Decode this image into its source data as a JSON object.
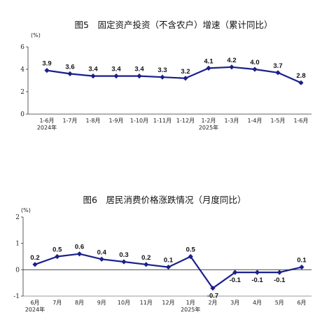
{
  "chart_data": [
    {
      "type": "line",
      "title": "图5　固定资产投资（不含农户）增速（累计同比）",
      "unit": "(%)",
      "ylim": [
        0,
        6
      ],
      "yticks": [
        "0",
        "2",
        "4",
        "6"
      ],
      "categories": [
        "1-6月",
        "1-7月",
        "1-8月",
        "1-9月",
        "1-10月",
        "1-11月",
        "1-12月",
        "1-2月",
        "1-3月",
        "1-4月",
        "1-5月",
        "1-6月"
      ],
      "year_labels": [
        {
          "index": 0,
          "label": "2024年"
        },
        {
          "index": 7,
          "label": "2025年"
        }
      ],
      "values": [
        3.9,
        3.6,
        3.4,
        3.4,
        3.4,
        3.3,
        3.2,
        4.1,
        4.2,
        4.0,
        3.7,
        2.8
      ],
      "value_labels": [
        "3.9",
        "3.6",
        "3.4",
        "3.4",
        "3.4",
        "3.3",
        "3.2",
        "4.1",
        "4.2",
        "4.0",
        "3.7",
        "2.8"
      ],
      "color": "#1a1f8c",
      "marker": "diamond",
      "grid": false,
      "legend": "none"
    },
    {
      "type": "line",
      "title": "图6　居民消费价格涨跌情况（月度同比）",
      "unit": "(%)",
      "ylim": [
        -1,
        2
      ],
      "yticks": [
        "-1",
        "0",
        "1",
        "2"
      ],
      "categories": [
        "6月",
        "7月",
        "8月",
        "9月",
        "10月",
        "11月",
        "12月",
        "1月",
        "2月",
        "3月",
        "4月",
        "5月",
        "6月"
      ],
      "year_labels": [
        {
          "index": 0,
          "label": "2024年"
        },
        {
          "index": 7,
          "label": "2025年"
        }
      ],
      "values": [
        0.2,
        0.5,
        0.6,
        0.4,
        0.3,
        0.2,
        0.1,
        0.5,
        -0.7,
        -0.1,
        -0.1,
        -0.1,
        0.1
      ],
      "value_labels": [
        "0.2",
        "0.5",
        "0.6",
        "0.4",
        "0.3",
        "0.2",
        "0.1",
        "0.5",
        "-0.7",
        "-0.1",
        "-0.1",
        "-0.1",
        "0.1"
      ],
      "color": "#1a1f8c",
      "marker": "diamond",
      "grid": false,
      "legend": "none"
    }
  ]
}
